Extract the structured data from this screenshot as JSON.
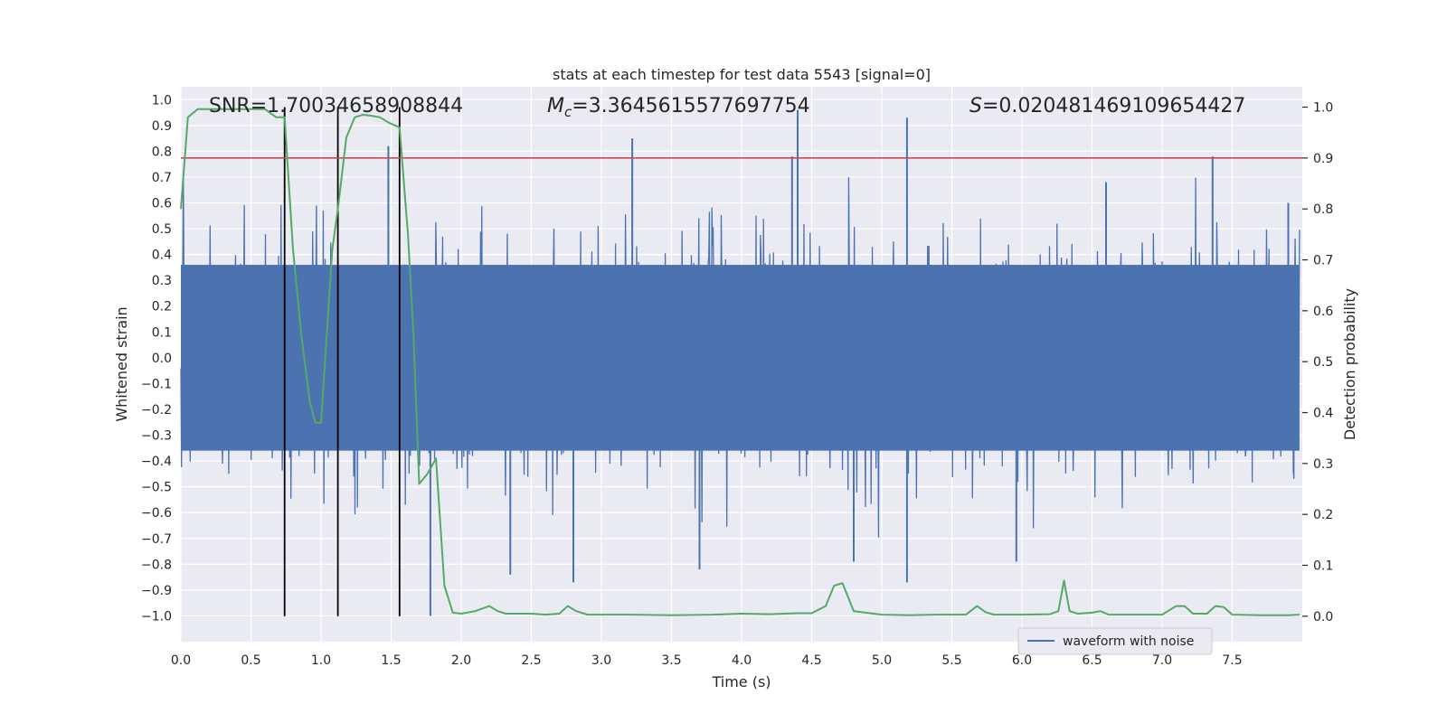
{
  "chart_data": {
    "type": "line",
    "title": "stats at each timestep for test data 5543 [signal=0]",
    "xlabel": "Time (s)",
    "ylabel": "Whitened strain",
    "y2label": "Detection probability",
    "xlim": [
      0.0,
      8.0
    ],
    "ylim": [
      -1.1,
      1.05
    ],
    "y2lim": [
      -0.05,
      1.04
    ],
    "xticks": [
      "0.0",
      "0.5",
      "1.0",
      "1.5",
      "2.0",
      "2.5",
      "3.0",
      "3.5",
      "4.0",
      "4.5",
      "5.0",
      "5.5",
      "6.0",
      "6.5",
      "7.0",
      "7.5"
    ],
    "xtick_values": [
      0.0,
      0.5,
      1.0,
      1.5,
      2.0,
      2.5,
      3.0,
      3.5,
      4.0,
      4.5,
      5.0,
      5.5,
      6.0,
      6.5,
      7.0,
      7.5
    ],
    "yticks": [
      "1.0",
      "0.9",
      "0.8",
      "0.7",
      "0.6",
      "0.5",
      "0.4",
      "0.3",
      "0.2",
      "0.1",
      "0.0",
      "−0.1",
      "−0.2",
      "−0.3",
      "−0.4",
      "−0.5",
      "−0.6",
      "−0.7",
      "−0.8",
      "−0.9",
      "−1.0"
    ],
    "ytick_values": [
      1.0,
      0.9,
      0.8,
      0.7,
      0.6,
      0.5,
      0.4,
      0.3,
      0.2,
      0.1,
      0.0,
      -0.1,
      -0.2,
      -0.3,
      -0.4,
      -0.5,
      -0.6,
      -0.7,
      -0.8,
      -0.9,
      -1.0
    ],
    "y2ticks": [
      "1.0",
      "0.9",
      "0.8",
      "0.7",
      "0.6",
      "0.5",
      "0.4",
      "0.3",
      "0.2",
      "0.1",
      "0.0"
    ],
    "y2tick_values": [
      1.0,
      0.9,
      0.8,
      0.7,
      0.6,
      0.5,
      0.4,
      0.3,
      0.2,
      0.1,
      0.0
    ],
    "stats": {
      "snr": "SNR=1.70034658908844",
      "mc_symbol": "M",
      "mc_sub": "c",
      "mc_value": "=3.3645615577697754",
      "s_symbol": "S",
      "s_value": "=0.020481469109654427"
    },
    "legend": {
      "label": "waveform with noise",
      "position": "lower-right"
    },
    "threshold": {
      "value": 0.9,
      "axis": "y2",
      "color": "#c44e52"
    },
    "vlines": [
      0.74,
      1.12,
      1.56
    ],
    "waveform": {
      "name": "waveform with noise",
      "color": "#4c72b0",
      "sample_count": 1800,
      "typical_amplitude": 0.4,
      "spikes": [
        {
          "t": 4.4,
          "v": 0.96
        },
        {
          "t": 5.18,
          "v": 0.93
        },
        {
          "t": 3.22,
          "v": 0.85
        },
        {
          "t": 7.36,
          "v": 0.78
        },
        {
          "t": 4.36,
          "v": 0.78
        },
        {
          "t": 1.48,
          "v": 0.82
        },
        {
          "t": 1.78,
          "v": -1.0
        },
        {
          "t": 5.18,
          "v": -0.87
        },
        {
          "t": 2.8,
          "v": -0.87
        },
        {
          "t": 4.8,
          "v": -0.79
        },
        {
          "t": 5.96,
          "v": -0.79
        },
        {
          "t": 2.35,
          "v": -0.84
        },
        {
          "t": 3.7,
          "v": -0.82
        },
        {
          "t": 7.9,
          "v": 0.6
        },
        {
          "t": 6.6,
          "v": 0.68
        }
      ]
    },
    "probability": {
      "name": "detection probability",
      "color": "#55a868",
      "x": [
        0.0,
        0.05,
        0.12,
        0.2,
        0.3,
        0.4,
        0.5,
        0.6,
        0.68,
        0.74,
        0.8,
        0.86,
        0.92,
        0.96,
        1.0,
        1.04,
        1.08,
        1.12,
        1.18,
        1.24,
        1.3,
        1.36,
        1.42,
        1.48,
        1.56,
        1.62,
        1.66,
        1.7,
        1.76,
        1.82,
        1.88,
        1.94,
        2.0,
        2.1,
        2.2,
        2.26,
        2.32,
        2.4,
        2.5,
        2.6,
        2.7,
        2.76,
        2.82,
        2.9,
        3.0,
        3.2,
        3.5,
        3.8,
        4.0,
        4.2,
        4.4,
        4.5,
        4.6,
        4.66,
        4.72,
        4.8,
        5.0,
        5.2,
        5.4,
        5.6,
        5.68,
        5.74,
        5.8,
        6.0,
        6.2,
        6.26,
        6.3,
        6.34,
        6.4,
        6.5,
        6.56,
        6.62,
        6.7,
        6.9,
        7.0,
        7.1,
        7.16,
        7.22,
        7.26,
        7.32,
        7.38,
        7.44,
        7.5,
        7.7,
        7.9,
        7.98
      ],
      "values": [
        0.8,
        0.98,
        0.996,
        0.996,
        0.996,
        0.996,
        0.996,
        0.996,
        0.98,
        0.98,
        0.72,
        0.55,
        0.42,
        0.38,
        0.38,
        0.55,
        0.72,
        0.8,
        0.94,
        0.98,
        0.985,
        0.983,
        0.98,
        0.97,
        0.96,
        0.75,
        0.55,
        0.26,
        0.28,
        0.31,
        0.06,
        0.007,
        0.005,
        0.01,
        0.02,
        0.01,
        0.005,
        0.005,
        0.005,
        0.003,
        0.005,
        0.02,
        0.01,
        0.003,
        0.003,
        0.003,
        0.002,
        0.003,
        0.005,
        0.004,
        0.006,
        0.006,
        0.02,
        0.06,
        0.065,
        0.01,
        0.003,
        0.002,
        0.003,
        0.003,
        0.02,
        0.008,
        0.003,
        0.003,
        0.004,
        0.01,
        0.07,
        0.01,
        0.005,
        0.007,
        0.01,
        0.003,
        0.003,
        0.003,
        0.003,
        0.02,
        0.02,
        0.005,
        0.005,
        0.005,
        0.02,
        0.018,
        0.003,
        0.002,
        0.002,
        0.003
      ]
    }
  }
}
